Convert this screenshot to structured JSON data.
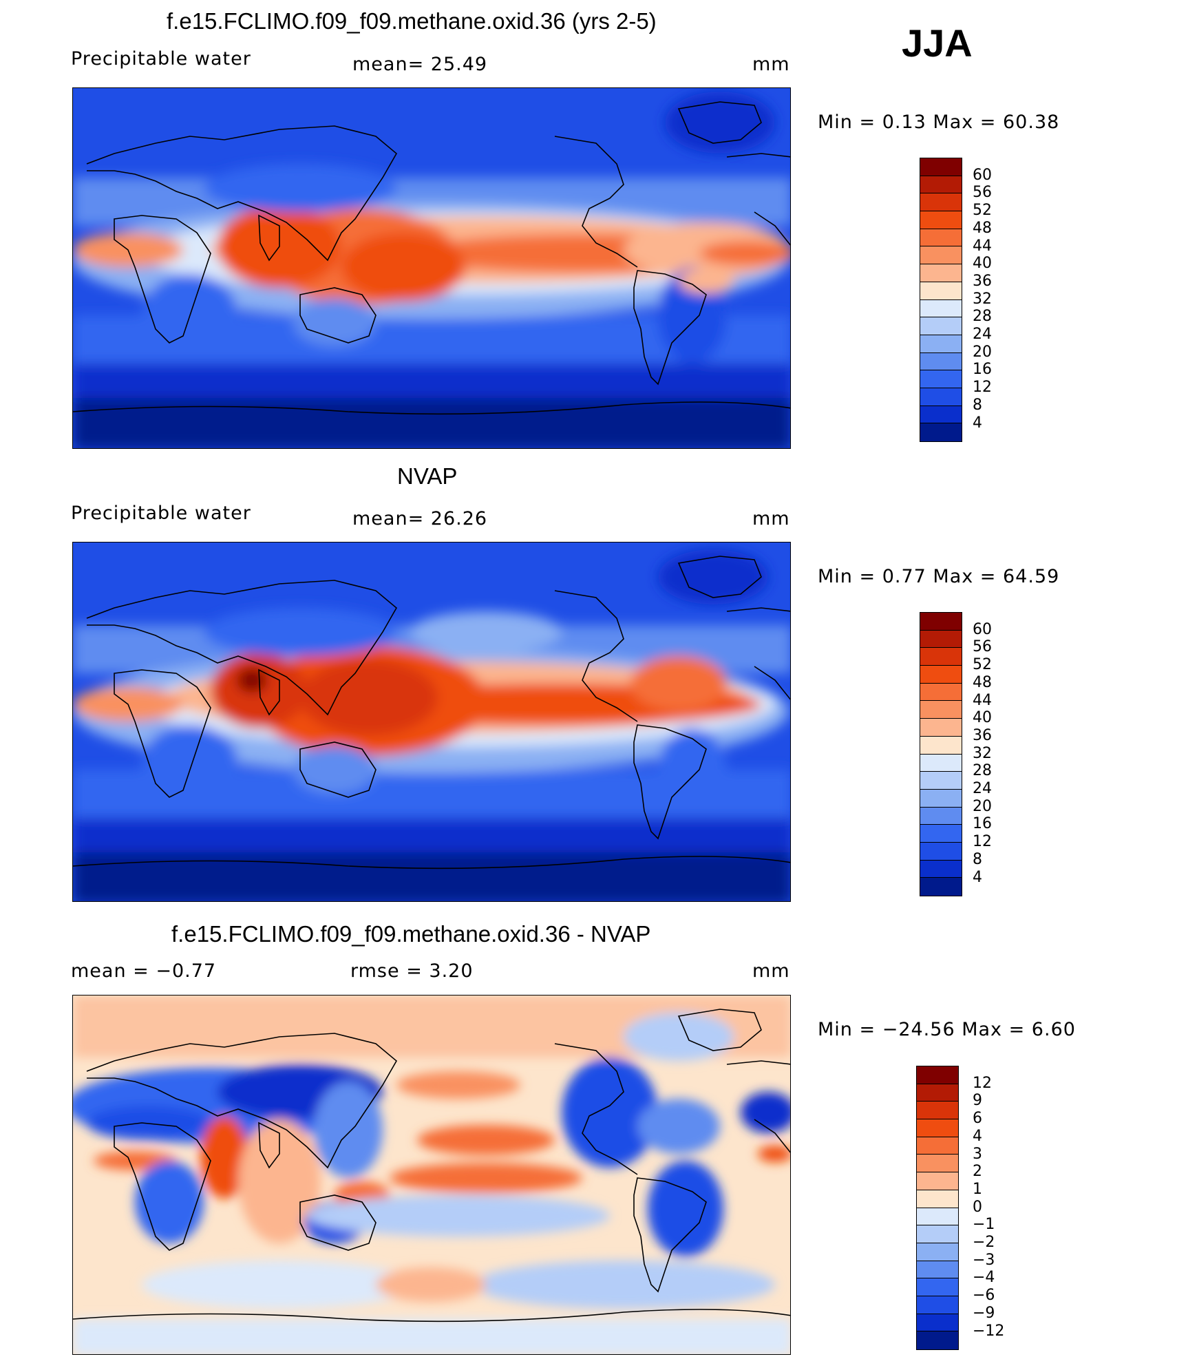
{
  "season": "JJA",
  "panels": [
    {
      "title": "f.e15.FCLIMO.f09_f09.methane.oxid.36 (yrs 2-5)",
      "left_label": "Precipitable  water",
      "mid_label": "mean=   25.49",
      "units": "mm",
      "stats": "Min  =      0.13  Max  =     60.38",
      "colorbar": {
        "levels": [
          "60",
          "56",
          "52",
          "48",
          "44",
          "40",
          "36",
          "32",
          "28",
          "24",
          "20",
          "16",
          "12",
          "8",
          "4"
        ],
        "colors": [
          "#7f0000",
          "#b31b05",
          "#d93409",
          "#ef4d10",
          "#f56e37",
          "#f99160",
          "#fcb58f",
          "#fde5cc",
          "#dce9fb",
          "#b4cdf8",
          "#8bb0f3",
          "#5f8cf0",
          "#3366f0",
          "#1f4ee6",
          "#0a2fcc",
          "#001a8c"
        ]
      }
    },
    {
      "title": "NVAP",
      "left_label": "Precipitable  water",
      "mid_label": "mean=   26.26",
      "units": "mm",
      "stats": "Min  =      0.77  Max  =     64.59",
      "colorbar": {
        "levels": [
          "60",
          "56",
          "52",
          "48",
          "44",
          "40",
          "36",
          "32",
          "28",
          "24",
          "20",
          "16",
          "12",
          "8",
          "4"
        ],
        "colors": [
          "#7f0000",
          "#b31b05",
          "#d93409",
          "#ef4d10",
          "#f56e37",
          "#f99160",
          "#fcb58f",
          "#fde5cc",
          "#dce9fb",
          "#b4cdf8",
          "#8bb0f3",
          "#5f8cf0",
          "#3366f0",
          "#1f4ee6",
          "#0a2fcc",
          "#001a8c"
        ]
      }
    },
    {
      "title": "f.e15.FCLIMO.f09_f09.methane.oxid.36 - NVAP",
      "left_label": "mean  =     −0.77",
      "mid_label": "rmse  =      3.20",
      "units": "mm",
      "stats": "Min  = −24.56  Max  =      6.60",
      "colorbar": {
        "levels": [
          "12",
          "9",
          "6",
          "4",
          "3",
          "2",
          "1",
          "0",
          "−1",
          "−2",
          "−3",
          "−4",
          "−6",
          "−9",
          "−12"
        ],
        "colors": [
          "#7f0000",
          "#b31b05",
          "#d93409",
          "#ef4d10",
          "#f56e37",
          "#f99160",
          "#fcb58f",
          "#fde5cc",
          "#dce9fb",
          "#b4cdf8",
          "#8bb0f3",
          "#5f8cf0",
          "#3366f0",
          "#1f4ee6",
          "#0a2fcc",
          "#001a8c"
        ]
      }
    }
  ]
}
